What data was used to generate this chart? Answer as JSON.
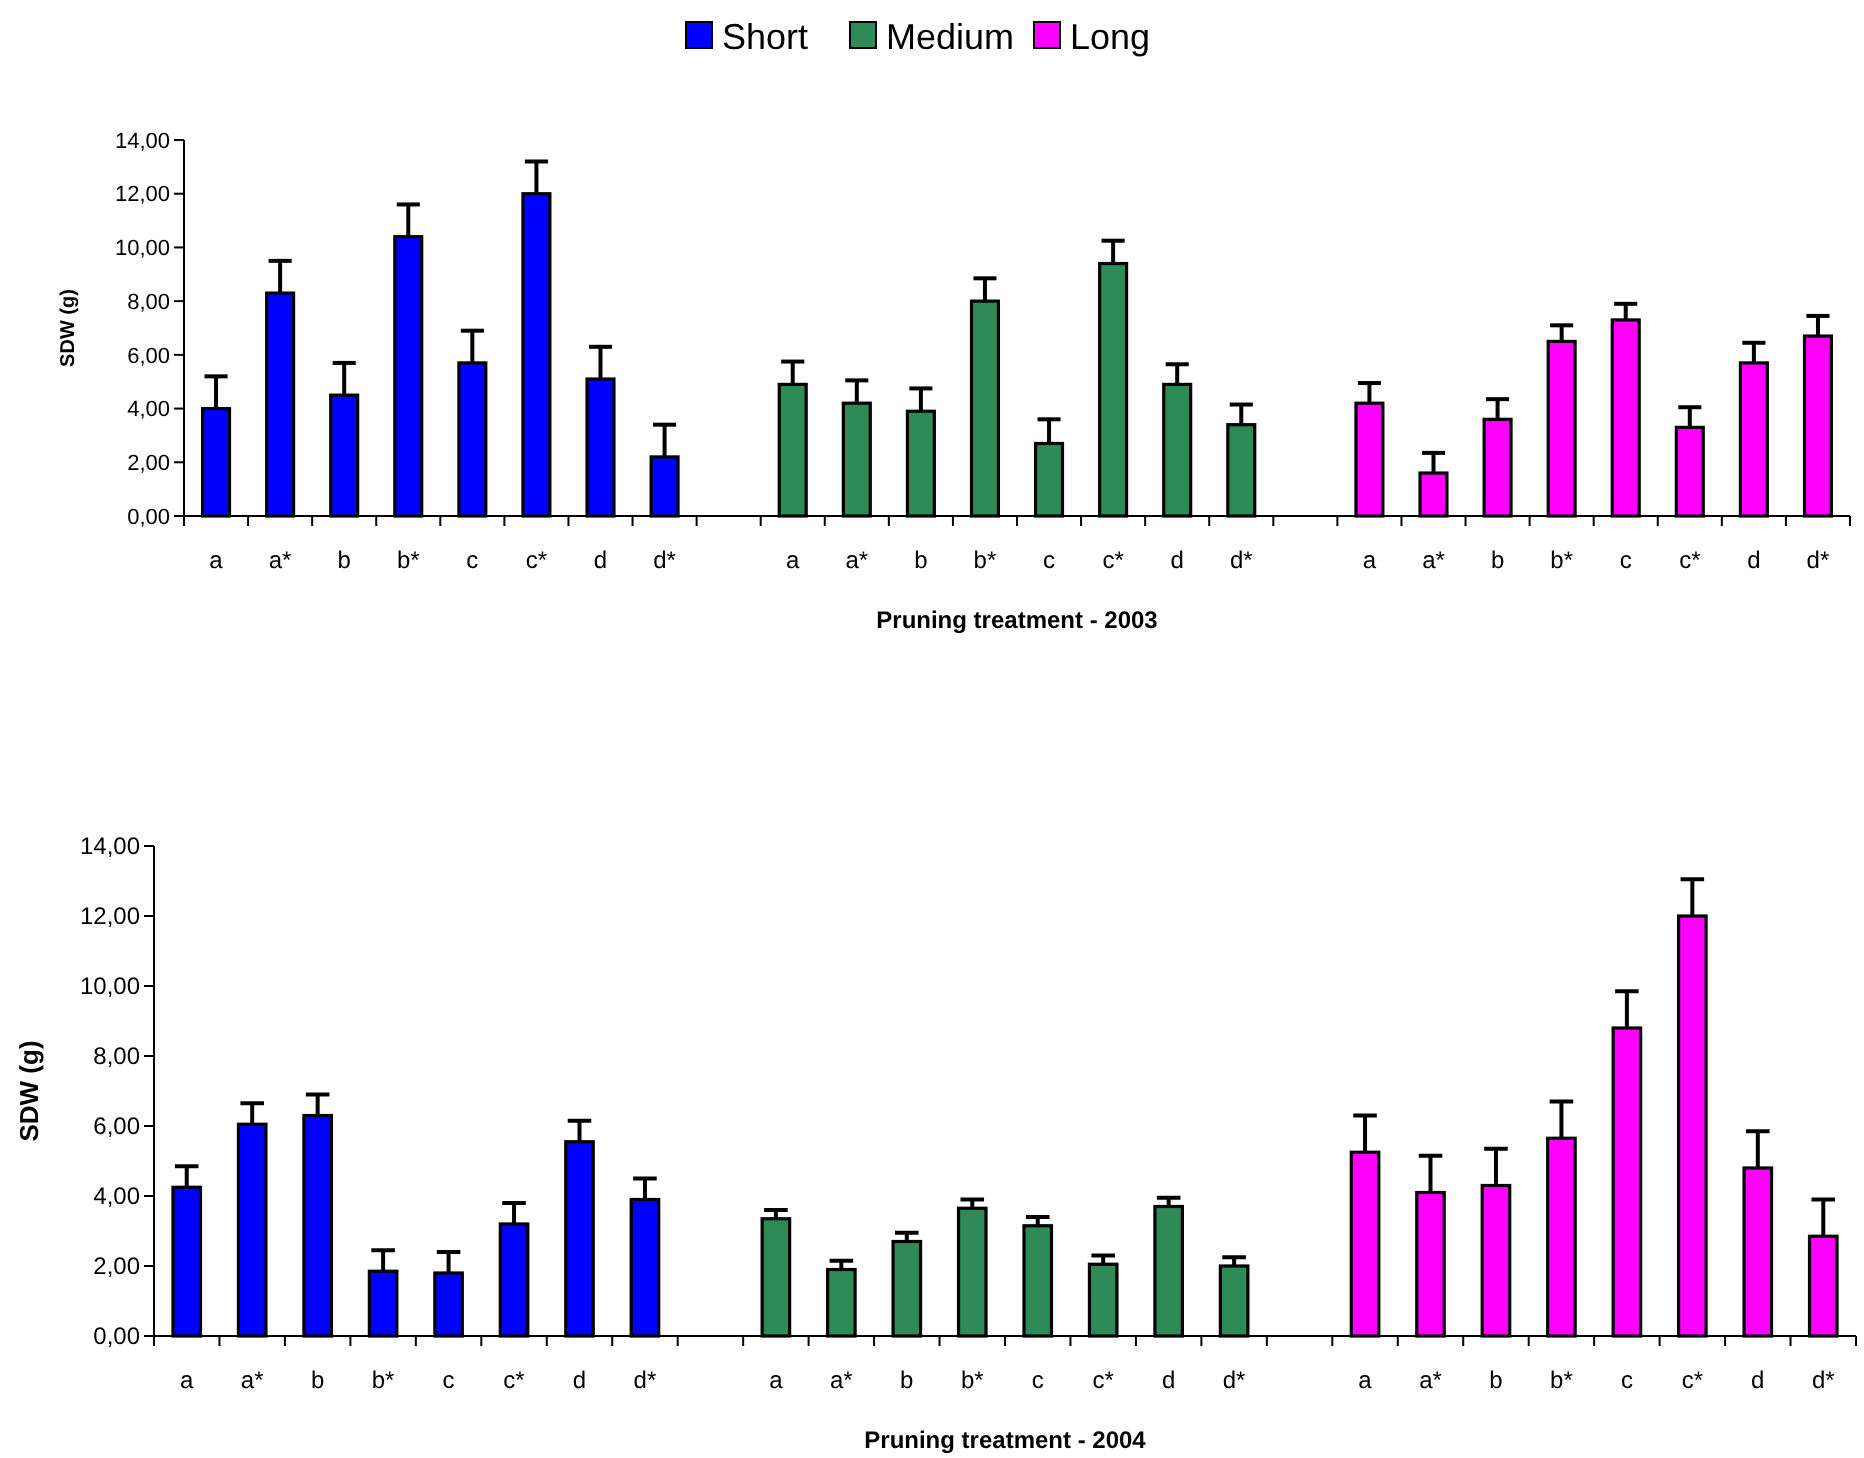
{
  "chart_data": [
    {
      "type": "bar",
      "xlabel": "Pruning treatment - 2003",
      "ylabel": "SDW (g)",
      "legend": "top",
      "grid": false,
      "categories": [
        "a",
        "a*",
        "b",
        "b*",
        "c",
        "c*",
        "d",
        "d*",
        null,
        "a",
        "a*",
        "b",
        "b*",
        "c",
        "c*",
        "d",
        "d*",
        null,
        "a",
        "a*",
        "b",
        "b*",
        "c",
        "c*",
        "d",
        "d*"
      ],
      "series": [
        {
          "name": "Short",
          "color": "#0000ff",
          "values": [
            4.0,
            8.3,
            4.5,
            10.4,
            5.7,
            12.0,
            5.1,
            2.2,
            null,
            null,
            null,
            null,
            null,
            null,
            null,
            null,
            null,
            null,
            null,
            null,
            null,
            null,
            null,
            null,
            null,
            null
          ],
          "errors": [
            [
              4.0,
              5.2
            ],
            [
              8.3,
              9.5
            ],
            [
              4.5,
              5.7
            ],
            [
              10.4,
              11.6
            ],
            [
              5.7,
              6.9
            ],
            [
              12.0,
              13.2
            ],
            [
              5.1,
              6.3
            ],
            [
              2.2,
              3.4
            ],
            null,
            null,
            null,
            null,
            null,
            null,
            null,
            null,
            null,
            null,
            null,
            null,
            null,
            null,
            null,
            null,
            null,
            null
          ]
        },
        {
          "name": "Medium",
          "color": "#2e8b57",
          "values": [
            null,
            null,
            null,
            null,
            null,
            null,
            null,
            null,
            null,
            4.9,
            4.2,
            3.9,
            8.0,
            2.7,
            9.4,
            4.9,
            3.4,
            null,
            null,
            null,
            null,
            null,
            null,
            null,
            null,
            null
          ],
          "errors": [
            null,
            null,
            null,
            null,
            null,
            null,
            null,
            null,
            null,
            [
              4.9,
              5.75
            ],
            [
              4.2,
              5.05
            ],
            [
              3.9,
              4.75
            ],
            [
              8.0,
              8.85
            ],
            [
              2.7,
              3.6
            ],
            [
              9.4,
              10.25
            ],
            [
              4.9,
              5.65
            ],
            [
              3.4,
              4.15
            ],
            null,
            null,
            null,
            null,
            null,
            null,
            null,
            null,
            null
          ]
        },
        {
          "name": "Long",
          "color": "#ff00ff",
          "values": [
            null,
            null,
            null,
            null,
            null,
            null,
            null,
            null,
            null,
            null,
            null,
            null,
            null,
            null,
            null,
            null,
            null,
            null,
            4.2,
            1.6,
            3.6,
            6.5,
            7.3,
            3.3,
            5.7,
            6.7
          ],
          "errors": [
            null,
            null,
            null,
            null,
            null,
            null,
            null,
            null,
            null,
            null,
            null,
            null,
            null,
            null,
            null,
            null,
            null,
            null,
            [
              4.2,
              4.95
            ],
            [
              1.6,
              2.35
            ],
            [
              3.6,
              4.35
            ],
            [
              6.5,
              7.1
            ],
            [
              7.3,
              7.9
            ],
            [
              3.3,
              4.05
            ],
            [
              5.7,
              6.45
            ],
            [
              6.7,
              7.45
            ]
          ]
        }
      ],
      "ylim": [
        0,
        14
      ],
      "yticks": [
        {
          "value": 0,
          "label": "0,00"
        },
        {
          "value": 2,
          "label": "2,00"
        },
        {
          "value": 4,
          "label": "4,00"
        },
        {
          "value": 6,
          "label": "6,00"
        },
        {
          "value": 8,
          "label": "8,00"
        },
        {
          "value": 10,
          "label": "10,00"
        },
        {
          "value": 12,
          "label": "12,00"
        },
        {
          "value": 14,
          "label": "14,00"
        }
      ]
    },
    {
      "type": "bar",
      "xlabel": "Pruning treatment - 2004",
      "ylabel": "SDW (g)",
      "grid": false,
      "categories": [
        "a",
        "a*",
        "b",
        "b*",
        "c",
        "c*",
        "d",
        "d*",
        null,
        "a",
        "a*",
        "b",
        "b*",
        "c",
        "c*",
        "d",
        "d*",
        null,
        "a",
        "a*",
        "b",
        "b*",
        "c",
        "c*",
        "d",
        "d*"
      ],
      "series": [
        {
          "color": "#0000ff",
          "values": [
            4.25,
            6.05,
            6.3,
            1.85,
            1.8,
            3.2,
            5.55,
            3.9,
            null,
            null,
            null,
            null,
            null,
            null,
            null,
            null,
            null,
            null,
            null,
            null,
            null,
            null,
            null,
            null,
            null,
            null
          ],
          "errors": [
            [
              4.25,
              4.85
            ],
            [
              6.05,
              6.65
            ],
            [
              6.3,
              6.9
            ],
            [
              1.85,
              2.45
            ],
            [
              1.8,
              2.4
            ],
            [
              3.2,
              3.8
            ],
            [
              5.55,
              6.15
            ],
            [
              3.9,
              4.5
            ],
            null,
            null,
            null,
            null,
            null,
            null,
            null,
            null,
            null,
            null,
            null,
            null,
            null,
            null,
            null,
            null,
            null,
            null
          ]
        },
        {
          "color": "#2e8b57",
          "values": [
            null,
            null,
            null,
            null,
            null,
            null,
            null,
            null,
            null,
            3.35,
            1.9,
            2.7,
            3.65,
            3.15,
            2.05,
            3.7,
            2.0,
            null,
            null,
            null,
            null,
            null,
            null,
            null,
            null,
            null
          ],
          "errors": [
            null,
            null,
            null,
            null,
            null,
            null,
            null,
            null,
            null,
            [
              3.35,
              3.6
            ],
            [
              1.9,
              2.15
            ],
            [
              2.7,
              2.95
            ],
            [
              3.65,
              3.9
            ],
            [
              3.15,
              3.4
            ],
            [
              2.05,
              2.3
            ],
            [
              3.7,
              3.95
            ],
            [
              2.0,
              2.25
            ],
            null,
            null,
            null,
            null,
            null,
            null,
            null,
            null,
            null
          ]
        },
        {
          "color": "#ff00ff",
          "values": [
            null,
            null,
            null,
            null,
            null,
            null,
            null,
            null,
            null,
            null,
            null,
            null,
            null,
            null,
            null,
            null,
            null,
            null,
            5.25,
            4.1,
            4.3,
            5.65,
            8.8,
            12.0,
            4.8,
            2.85
          ],
          "errors": [
            null,
            null,
            null,
            null,
            null,
            null,
            null,
            null,
            null,
            null,
            null,
            null,
            null,
            null,
            null,
            null,
            null,
            null,
            [
              5.25,
              6.3
            ],
            [
              4.1,
              5.15
            ],
            [
              4.3,
              5.35
            ],
            [
              5.65,
              6.7
            ],
            [
              8.8,
              9.85
            ],
            [
              12.0,
              13.05
            ],
            [
              4.8,
              5.85
            ],
            [
              2.85,
              3.9
            ]
          ]
        }
      ],
      "ylim": [
        0,
        14
      ],
      "yticks": [
        {
          "value": 0,
          "label": "0,00"
        },
        {
          "value": 2,
          "label": "2,00"
        },
        {
          "value": 4,
          "label": "4,00"
        },
        {
          "value": 6,
          "label": "6,00"
        },
        {
          "value": 8,
          "label": "8,00"
        },
        {
          "value": 10,
          "label": "10,00"
        },
        {
          "value": 12,
          "label": "12,00"
        },
        {
          "value": 14,
          "label": "14,00"
        }
      ]
    }
  ]
}
